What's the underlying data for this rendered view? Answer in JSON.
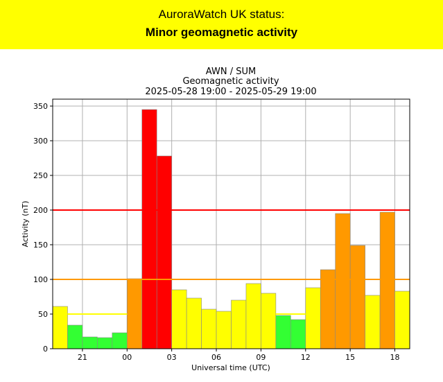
{
  "status": {
    "heading": "AuroraWatch UK status:",
    "level": "Minor geomagnetic activity",
    "banner_color": "#ffff00"
  },
  "chart_data": {
    "type": "bar",
    "title": "AWN / SUM",
    "subtitle": "Geomagnetic activity",
    "date_range": "2025-05-28 19:00 - 2025-05-29 19:00",
    "xlabel": "Universal time (UTC)",
    "ylabel": "Activity (nT)",
    "ylim": [
      0,
      360
    ],
    "yticks": [
      0,
      50,
      100,
      150,
      200,
      250,
      300,
      350
    ],
    "xlim": [
      19,
      43
    ],
    "xticks": [
      {
        "label": "21",
        "hour": 21
      },
      {
        "label": "00",
        "hour": 24
      },
      {
        "label": "03",
        "hour": 27
      },
      {
        "label": "06",
        "hour": 30
      },
      {
        "label": "09",
        "hour": 33
      },
      {
        "label": "12",
        "hour": 36
      },
      {
        "label": "15",
        "hour": 39
      },
      {
        "label": "18",
        "hour": 42
      }
    ],
    "grid": true,
    "hours": [
      19,
      20,
      21,
      22,
      23,
      24,
      25,
      26,
      27,
      28,
      29,
      30,
      31,
      32,
      33,
      34,
      35,
      36,
      37,
      38,
      39,
      40,
      41,
      42
    ],
    "values": [
      61,
      34,
      17,
      16,
      23,
      101,
      345,
      278,
      85,
      73,
      57,
      54,
      70,
      94,
      80,
      48,
      42,
      88,
      114,
      195,
      149,
      77,
      197,
      83
    ],
    "levels": [
      "yellow",
      "green",
      "green",
      "green",
      "green",
      "amber",
      "red",
      "red",
      "yellow",
      "yellow",
      "yellow",
      "yellow",
      "yellow",
      "yellow",
      "yellow",
      "green",
      "green",
      "yellow",
      "amber",
      "amber",
      "amber",
      "yellow",
      "amber",
      "yellow"
    ],
    "level_colors": {
      "green": "#33ff33",
      "yellow": "#ffff00",
      "amber": "#ff9900",
      "red": "#ff0000"
    },
    "thresholds": [
      {
        "level": "yellow",
        "value": 50,
        "color": "#ffff00",
        "from_hour": 20,
        "to_hour": 24
      },
      {
        "level": "yellow",
        "value": 50,
        "color": "#ffff00",
        "from_hour": 34,
        "to_hour": 36
      },
      {
        "level": "amber",
        "value": 100,
        "color": "#ff9900",
        "from_hour": 19,
        "to_hour": 43
      },
      {
        "level": "red",
        "value": 200,
        "color": "#ff0000",
        "from_hour": 19,
        "to_hour": 43
      }
    ]
  }
}
